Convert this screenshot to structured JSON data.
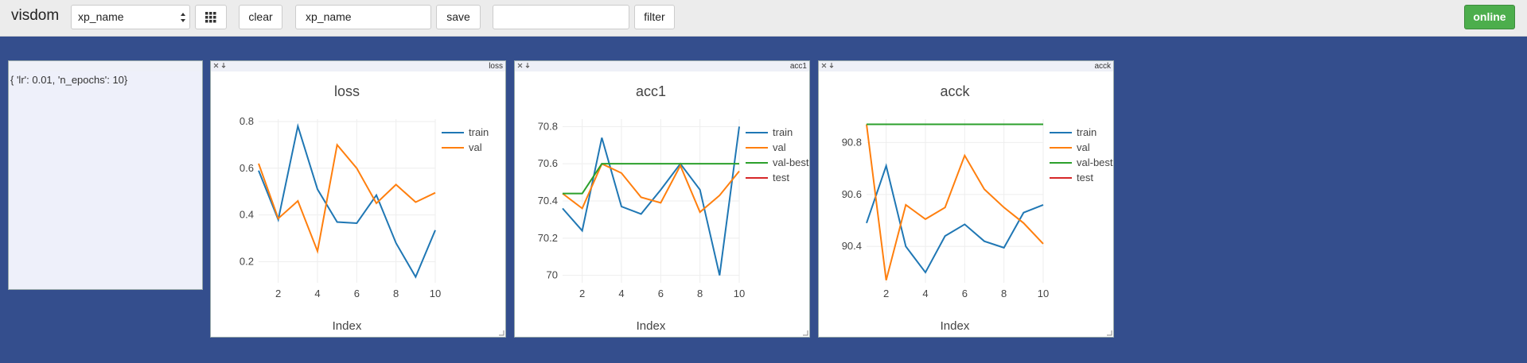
{
  "toolbar": {
    "app_name": "visdom",
    "env_select": "xp_name",
    "clear": "clear",
    "env_input": "xp_name",
    "save": "save",
    "filter": "filter",
    "status": "online"
  },
  "text_pane": {
    "content": "{ 'lr': 0.01, 'n_epochs': 10}"
  },
  "chart_data": [
    {
      "type": "line",
      "title": "loss",
      "x_label": "Index",
      "x": [
        1,
        2,
        3,
        4,
        5,
        6,
        7,
        8,
        9,
        10
      ],
      "xlim": [
        1,
        10
      ],
      "xticks": [
        2,
        4,
        6,
        8,
        10
      ],
      "ylim": [
        0.11,
        0.81
      ],
      "yticks": [
        0.2,
        0.4,
        0.6,
        0.8
      ],
      "grid": true,
      "legend": "right",
      "series": [
        {
          "name": "train",
          "color": "#1f77b4",
          "values": [
            0.59,
            0.38,
            0.78,
            0.51,
            0.37,
            0.365,
            0.485,
            0.28,
            0.135,
            0.335
          ]
        },
        {
          "name": "val",
          "color": "#ff7f0e",
          "values": [
            0.62,
            0.385,
            0.46,
            0.245,
            0.7,
            0.6,
            0.45,
            0.53,
            0.455,
            0.495
          ]
        }
      ]
    },
    {
      "type": "line",
      "title": "acc1",
      "x_label": "Index",
      "x": [
        1,
        2,
        3,
        4,
        5,
        6,
        7,
        8,
        9,
        10
      ],
      "xlim": [
        1,
        10
      ],
      "xticks": [
        2,
        4,
        6,
        8,
        10
      ],
      "ylim": [
        69.96,
        70.84
      ],
      "yticks": [
        70,
        70.2,
        70.4,
        70.6,
        70.8
      ],
      "grid": true,
      "legend": "right",
      "series": [
        {
          "name": "train",
          "color": "#1f77b4",
          "values": [
            70.36,
            70.24,
            70.74,
            70.37,
            70.33,
            70.46,
            70.6,
            70.46,
            70.0,
            70.8
          ]
        },
        {
          "name": "val",
          "color": "#ff7f0e",
          "values": [
            70.44,
            70.36,
            70.6,
            70.55,
            70.42,
            70.39,
            70.59,
            70.34,
            70.43,
            70.56
          ]
        },
        {
          "name": "val-best",
          "color": "#2ca02c",
          "values": [
            70.44,
            70.44,
            70.6,
            70.6,
            70.6,
            70.6,
            70.6,
            70.6,
            70.6,
            70.6
          ]
        },
        {
          "name": "test",
          "color": "#d62728",
          "values": [
            null,
            null,
            null,
            null,
            null,
            null,
            null,
            null,
            null,
            null
          ]
        }
      ]
    },
    {
      "type": "line",
      "title": "acck",
      "x_label": "Index",
      "x": [
        1,
        2,
        3,
        4,
        5,
        6,
        7,
        8,
        9,
        10
      ],
      "xlim": [
        1,
        10
      ],
      "xticks": [
        2,
        4,
        6,
        8,
        10
      ],
      "ylim": [
        90.26,
        90.89
      ],
      "yticks": [
        90.4,
        90.6,
        90.8
      ],
      "grid": true,
      "legend": "right",
      "series": [
        {
          "name": "train",
          "color": "#1f77b4",
          "values": [
            90.49,
            90.71,
            90.4,
            90.3,
            90.44,
            90.485,
            90.42,
            90.395,
            90.53,
            90.56
          ]
        },
        {
          "name": "val",
          "color": "#ff7f0e",
          "values": [
            90.87,
            90.27,
            90.56,
            90.505,
            90.55,
            90.75,
            90.62,
            90.55,
            90.49,
            90.41
          ]
        },
        {
          "name": "val-best",
          "color": "#2ca02c",
          "values": [
            90.87,
            90.87,
            90.87,
            90.87,
            90.87,
            90.87,
            90.87,
            90.87,
            90.87,
            90.87
          ]
        },
        {
          "name": "test",
          "color": "#d62728",
          "values": [
            null,
            null,
            null,
            null,
            null,
            null,
            null,
            null,
            null,
            null
          ]
        }
      ]
    }
  ]
}
